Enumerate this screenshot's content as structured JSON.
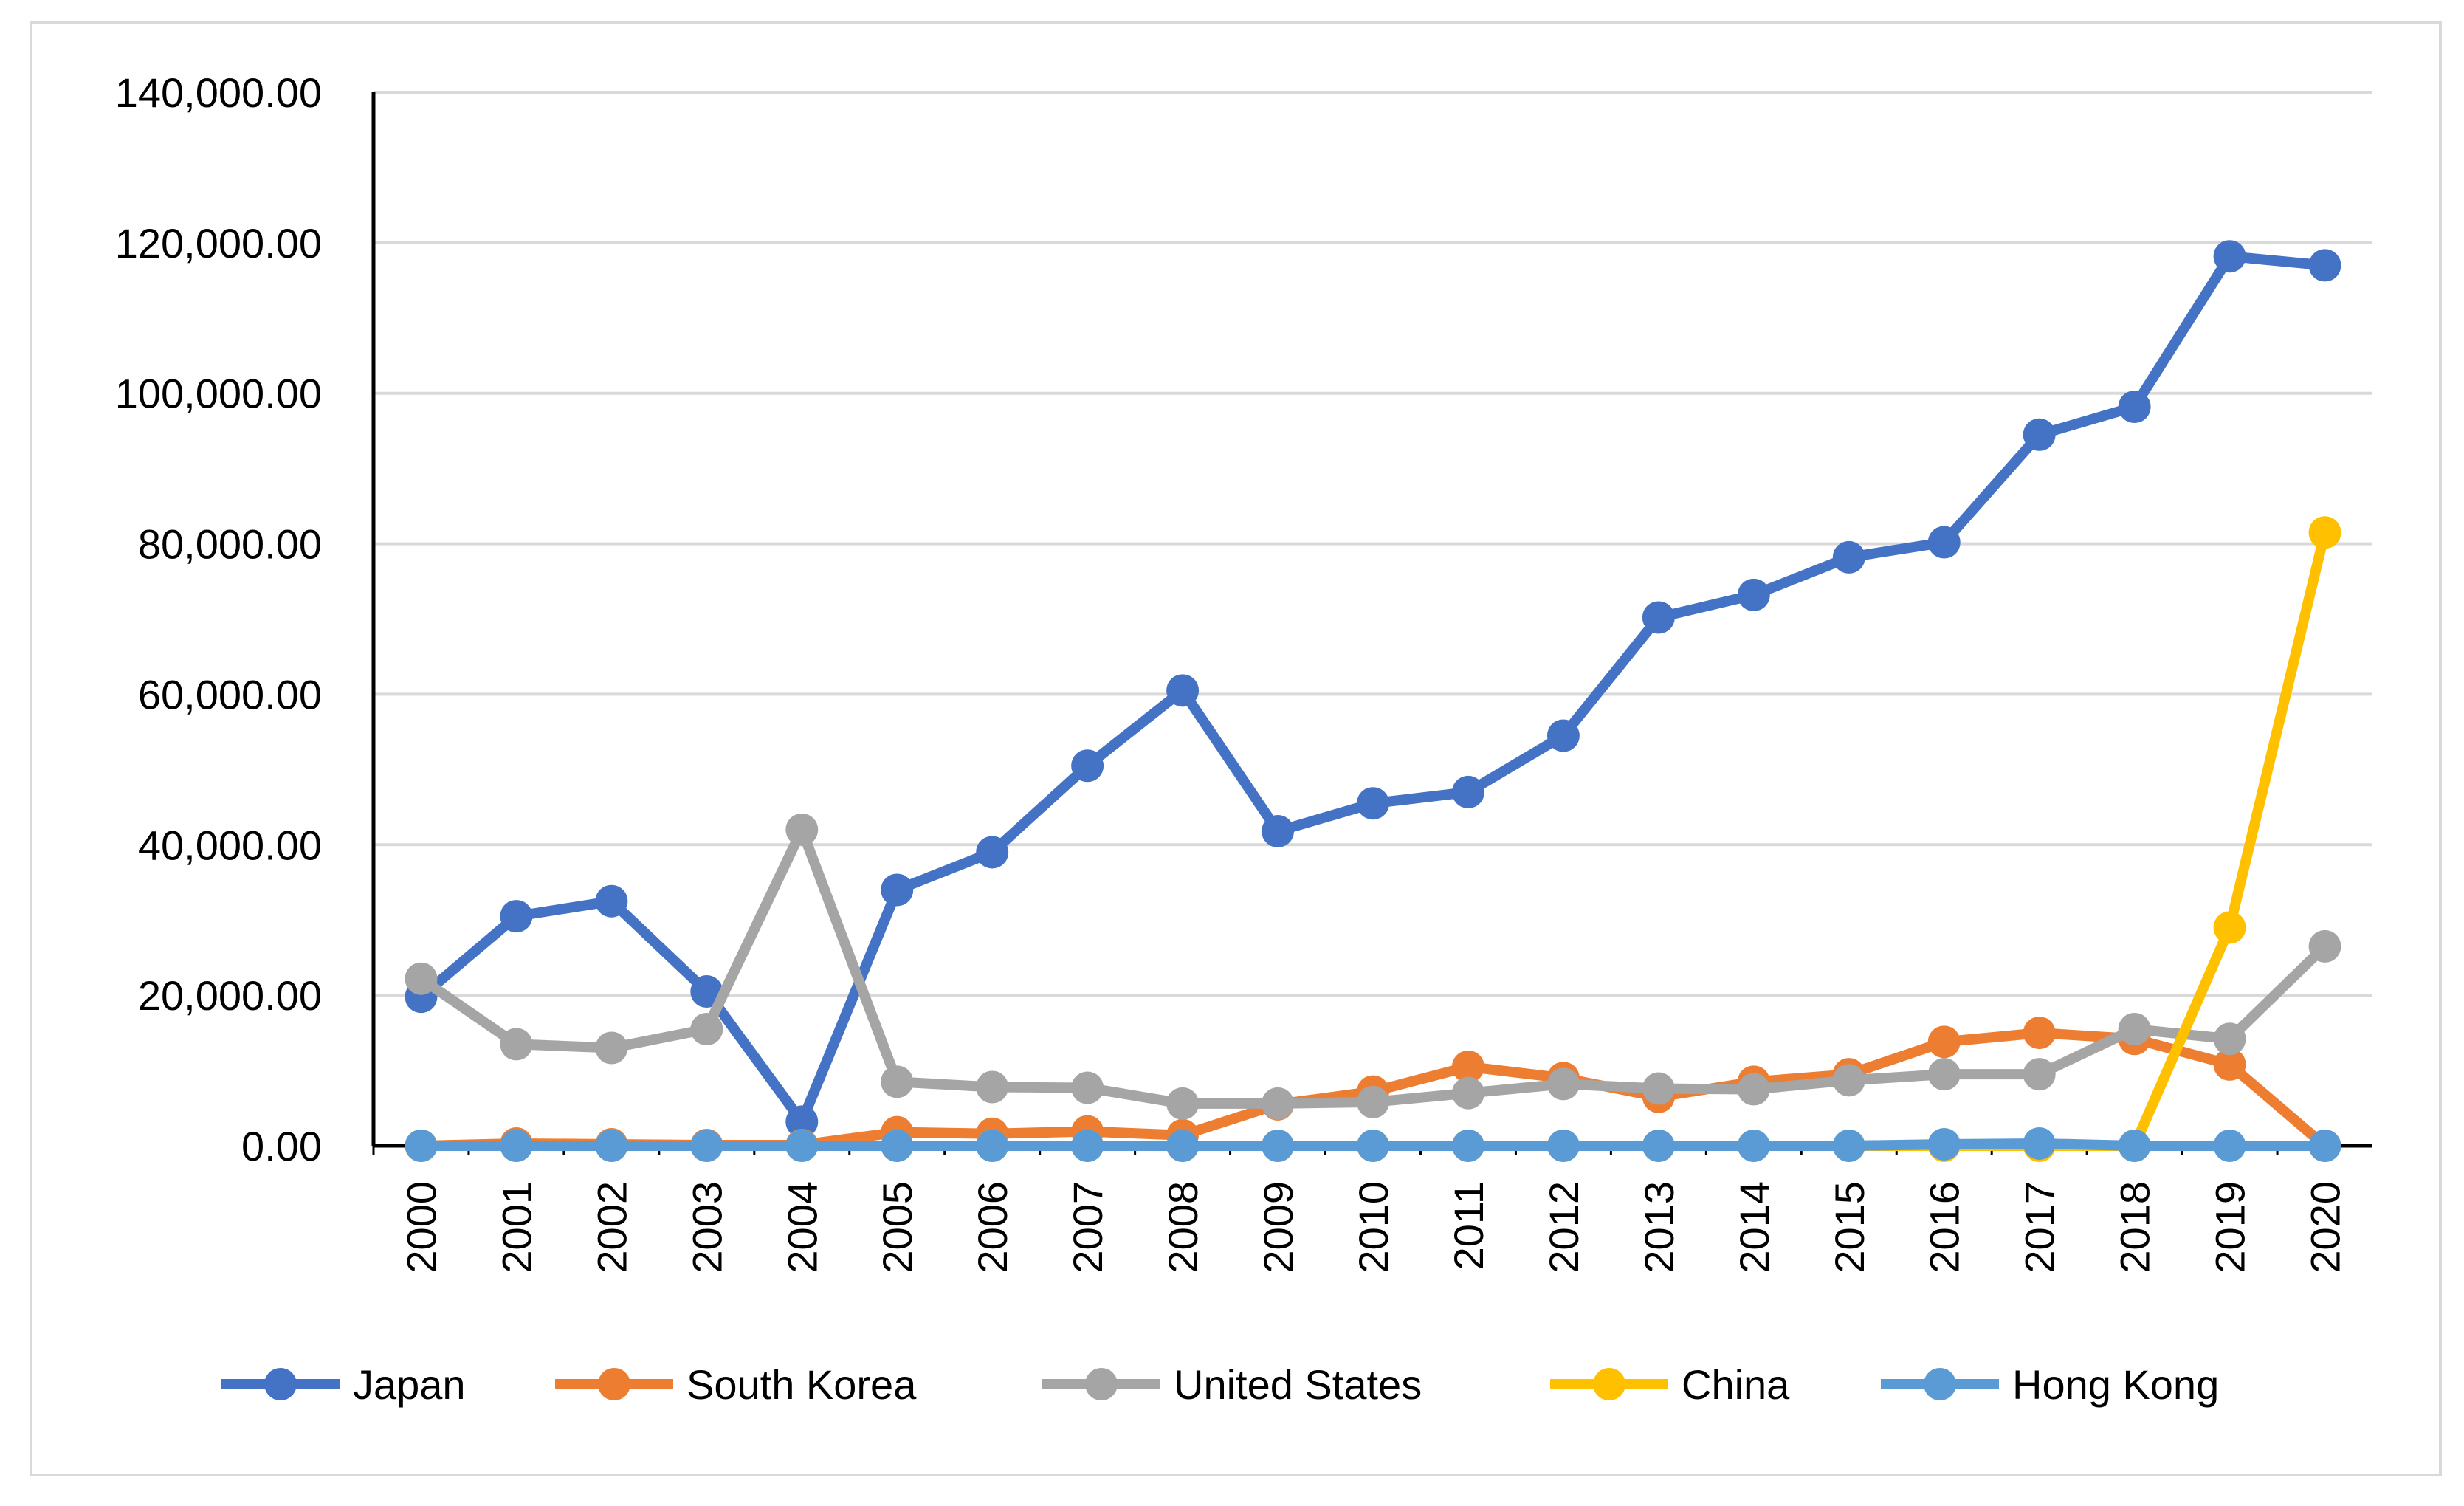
{
  "chart_data": {
    "type": "line",
    "title": "",
    "xlabel": "",
    "ylabel": "",
    "ylim": [
      0,
      140000
    ],
    "y_ticks": [
      0,
      20000,
      40000,
      60000,
      80000,
      100000,
      120000,
      140000
    ],
    "y_tick_labels": [
      "0.00",
      "20,000.00",
      "40,000.00",
      "60,000.00",
      "80,000.00",
      "100,000.00",
      "120,000.00",
      "140,000.00"
    ],
    "grid": true,
    "legend_position": "bottom",
    "categories": [
      "2000",
      "2001",
      "2002",
      "2003",
      "2004",
      "2005",
      "2006",
      "2007",
      "2008",
      "2009",
      "2010",
      "2011",
      "2012",
      "2013",
      "2014",
      "2015",
      "2016",
      "2017",
      "2018",
      "2019",
      "2020"
    ],
    "series": [
      {
        "name": "Japan",
        "color": "#4472C4",
        "values": [
          19800,
          30500,
          32500,
          20500,
          3200,
          34000,
          39000,
          50500,
          60500,
          41800,
          45500,
          47000,
          54500,
          70200,
          73200,
          78200,
          80200,
          94500,
          98200,
          118200,
          117000
        ]
      },
      {
        "name": "South Korea",
        "color": "#ED7D31",
        "values": [
          0,
          300,
          200,
          100,
          100,
          1800,
          1600,
          1900,
          1400,
          5500,
          7200,
          10500,
          9000,
          6500,
          8500,
          9500,
          13800,
          15000,
          14200,
          10800,
          0
        ]
      },
      {
        "name": "United States",
        "color": "#A5A5A5",
        "values": [
          22200,
          13500,
          13000,
          15500,
          42000,
          8500,
          7800,
          7700,
          5600,
          5600,
          5800,
          7000,
          8200,
          7600,
          7500,
          8700,
          9500,
          9500,
          15500,
          14200,
          26500
        ]
      },
      {
        "name": "China",
        "color": "#FFC000",
        "values": [
          0,
          0,
          0,
          0,
          0,
          0,
          0,
          0,
          0,
          0,
          0,
          0,
          0,
          0,
          0,
          0,
          0,
          0,
          0,
          29000,
          81500
        ]
      },
      {
        "name": "Hong Kong",
        "color": "#5B9BD5",
        "values": [
          0,
          0,
          0,
          0,
          0,
          0,
          0,
          0,
          0,
          0,
          0,
          0,
          0,
          0,
          0,
          0,
          200,
          300,
          0,
          0,
          0
        ]
      }
    ]
  }
}
